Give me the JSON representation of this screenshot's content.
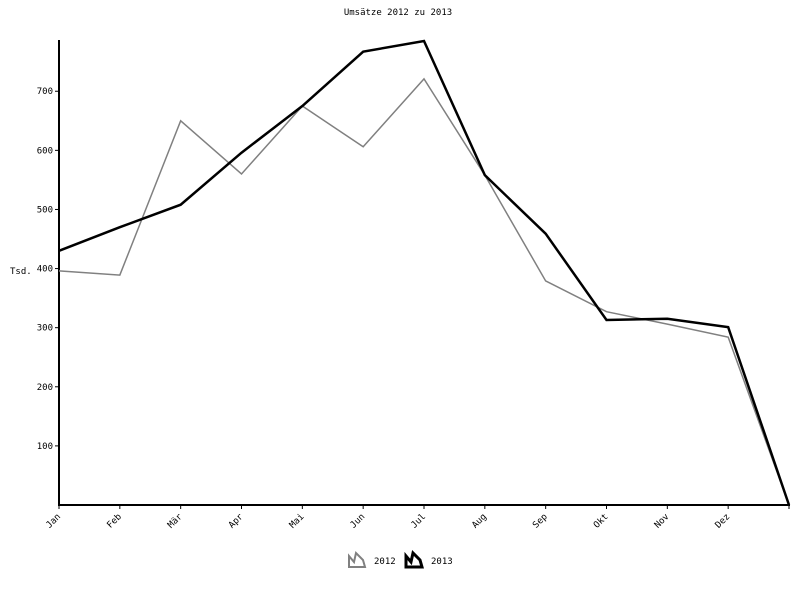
{
  "chart_data": {
    "type": "line",
    "title": "Umsätze 2012 zu 2013",
    "y_label": "Tsd.",
    "categories": [
      "Jan",
      "Feb",
      "Mär",
      "Apr",
      "Mai",
      "Jun",
      "Jul",
      "Aug",
      "Sep",
      "Okt",
      "Nov",
      "Dez",
      null
    ],
    "series": [
      {
        "name": "2012",
        "color": "#808080",
        "values": [
          396,
          389,
          650,
          560,
          675,
          606,
          721,
          558,
          379,
          327,
          306,
          284,
          0
        ]
      },
      {
        "name": "2013",
        "color": "#000000",
        "values": [
          430,
          470,
          508,
          596,
          675,
          767,
          785,
          558,
          459,
          313,
          315,
          301,
          0
        ]
      }
    ],
    "ylim": [
      0,
      785
    ],
    "yticks": [
      100,
      200,
      300,
      400,
      500,
      600,
      700
    ],
    "grid": false
  }
}
